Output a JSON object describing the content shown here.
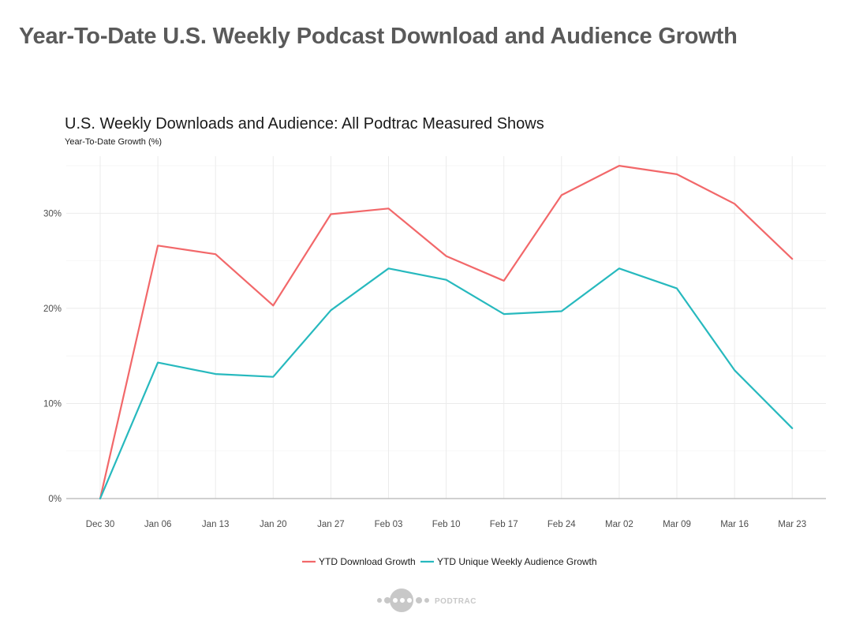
{
  "page": {
    "title": "Year-To-Date U.S. Weekly Podcast Download and Audience Growth",
    "brand": "PODTRAC"
  },
  "colors": {
    "download": "#F2686A",
    "audience": "#27B9BE",
    "title": "#5A5A5A",
    "logo": "#C8C8C8"
  },
  "chart_data": {
    "type": "line",
    "title": "U.S. Weekly Downloads and Audience: All Podtrac Measured Shows",
    "subtitle": "Year-To-Date Growth (%)",
    "xlabel": "",
    "ylabel": "Year-To-Date Growth (%)",
    "categories": [
      "Dec 30",
      "Jan 06",
      "Jan 13",
      "Jan 20",
      "Jan 27",
      "Feb 03",
      "Feb 10",
      "Feb 17",
      "Feb 24",
      "Mar 02",
      "Mar 09",
      "Mar 16",
      "Mar 23"
    ],
    "ylim": [
      0,
      36
    ],
    "yticks": [
      0,
      10,
      20,
      30
    ],
    "ytick_labels": [
      "0%",
      "10%",
      "20%",
      "30%"
    ],
    "grid": true,
    "legend_position": "bottom",
    "series": [
      {
        "name": "YTD Download Growth",
        "color": "#F2686A",
        "values": [
          0,
          26.6,
          25.7,
          20.3,
          29.9,
          30.5,
          25.5,
          22.9,
          31.9,
          35.0,
          34.1,
          31.0,
          25.2
        ]
      },
      {
        "name": "YTD Unique Weekly Audience Growth",
        "color": "#27B9BE",
        "values": [
          0,
          14.3,
          13.1,
          12.8,
          19.8,
          24.2,
          23.0,
          19.4,
          19.7,
          24.2,
          22.1,
          13.5,
          7.4
        ]
      }
    ]
  }
}
